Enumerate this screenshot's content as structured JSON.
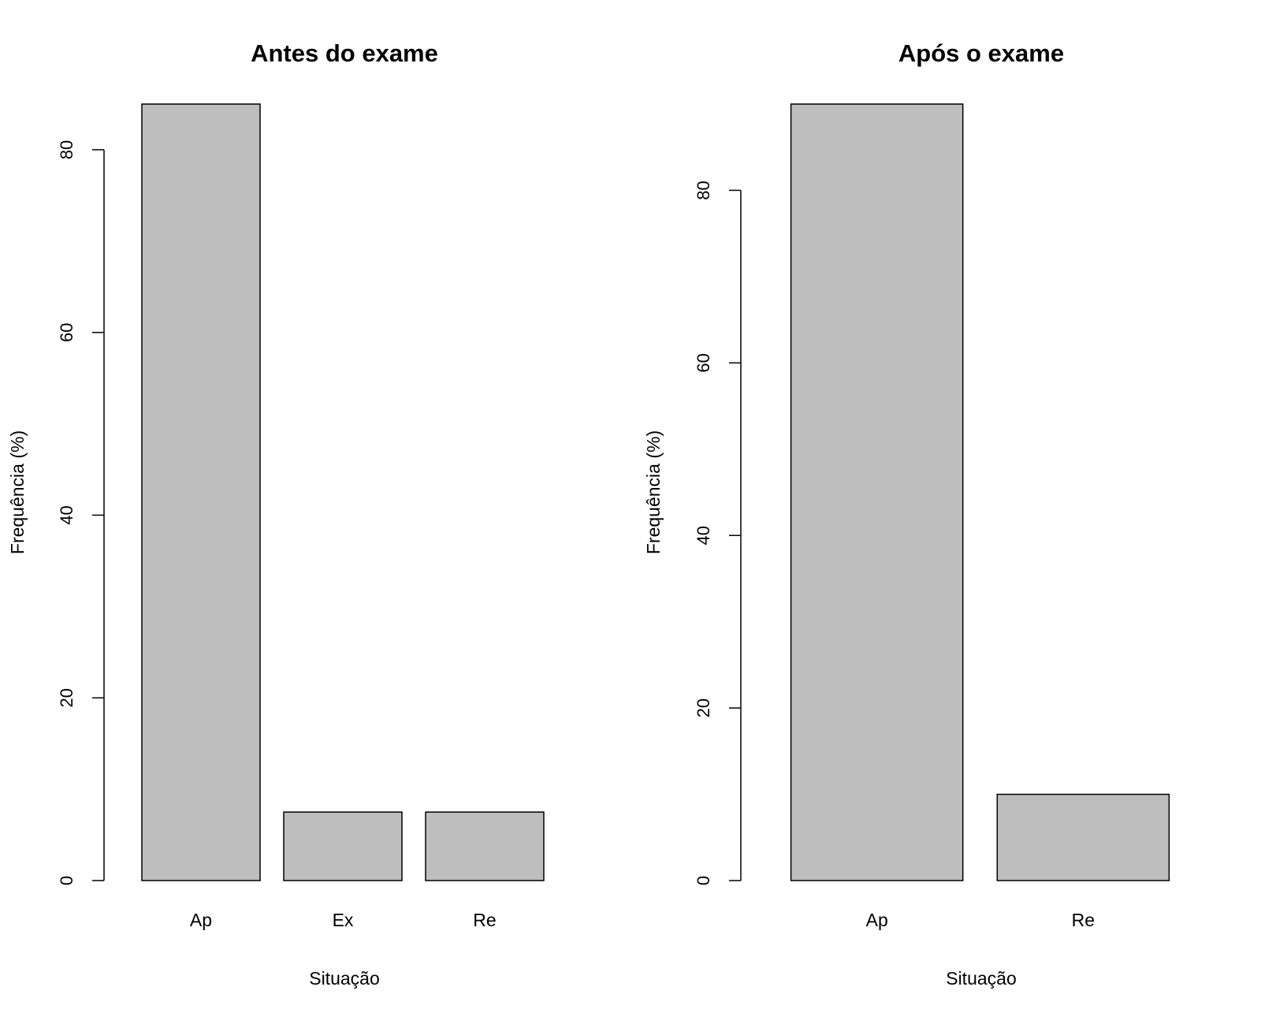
{
  "chart_data": [
    {
      "type": "bar",
      "title": "Antes do exame",
      "xlabel": "Situação",
      "ylabel": "Frequência (%)",
      "categories": [
        "Ap",
        "Ex",
        "Re"
      ],
      "values": [
        85,
        7.5,
        7.5
      ],
      "yticks": [
        "0",
        "20",
        "40",
        "60",
        "80"
      ],
      "ylim": [
        0,
        85
      ],
      "grid": false,
      "bar_color": "#bebebe"
    },
    {
      "type": "bar",
      "title": "Após o exame",
      "xlabel": "Situação",
      "ylabel": "Frequência (%)",
      "categories": [
        "Ap",
        "Re"
      ],
      "values": [
        90,
        10
      ],
      "yticks": [
        "0",
        "20",
        "40",
        "60",
        "80"
      ],
      "ylim": [
        0,
        90
      ],
      "grid": false,
      "bar_color": "#bebebe"
    }
  ]
}
